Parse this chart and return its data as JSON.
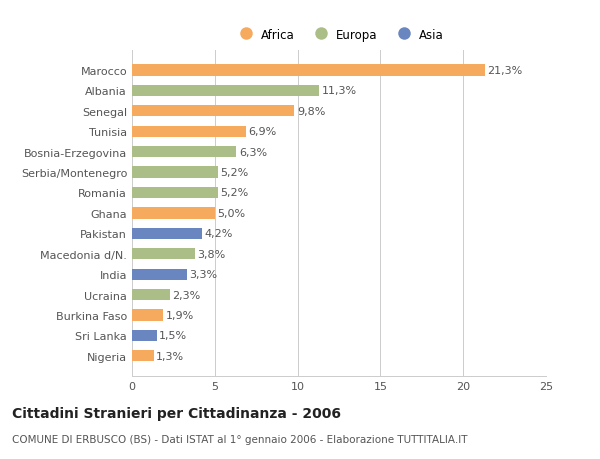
{
  "categories": [
    "Marocco",
    "Albania",
    "Senegal",
    "Tunisia",
    "Bosnia-Erzegovina",
    "Serbia/Montenegro",
    "Romania",
    "Ghana",
    "Pakistan",
    "Macedonia d/N.",
    "India",
    "Ucraina",
    "Burkina Faso",
    "Sri Lanka",
    "Nigeria"
  ],
  "values": [
    21.3,
    11.3,
    9.8,
    6.9,
    6.3,
    5.2,
    5.2,
    5.0,
    4.2,
    3.8,
    3.3,
    2.3,
    1.9,
    1.5,
    1.3
  ],
  "labels": [
    "21,3%",
    "11,3%",
    "9,8%",
    "6,9%",
    "6,3%",
    "5,2%",
    "5,2%",
    "5,0%",
    "4,2%",
    "3,8%",
    "3,3%",
    "2,3%",
    "1,9%",
    "1,5%",
    "1,3%"
  ],
  "continents": [
    "Africa",
    "Europa",
    "Africa",
    "Africa",
    "Europa",
    "Europa",
    "Europa",
    "Africa",
    "Asia",
    "Europa",
    "Asia",
    "Europa",
    "Africa",
    "Asia",
    "Africa"
  ],
  "colors": {
    "Africa": "#F5AA5E",
    "Europa": "#ABBE87",
    "Asia": "#6A86C0"
  },
  "legend": [
    "Africa",
    "Europa",
    "Asia"
  ],
  "legend_colors": [
    "#F5AA5E",
    "#ABBE87",
    "#6A86C0"
  ],
  "title": "Cittadini Stranieri per Cittadinanza - 2006",
  "subtitle": "COMUNE DI ERBUSCO (BS) - Dati ISTAT al 1° gennaio 2006 - Elaborazione TUTTITALIA.IT",
  "xlim": [
    0,
    25
  ],
  "xticks": [
    0,
    5,
    10,
    15,
    20,
    25
  ],
  "background_color": "#ffffff",
  "bar_height": 0.55,
  "grid_color": "#cccccc",
  "label_fontsize": 8,
  "tick_fontsize": 8,
  "title_fontsize": 10,
  "subtitle_fontsize": 7.5
}
